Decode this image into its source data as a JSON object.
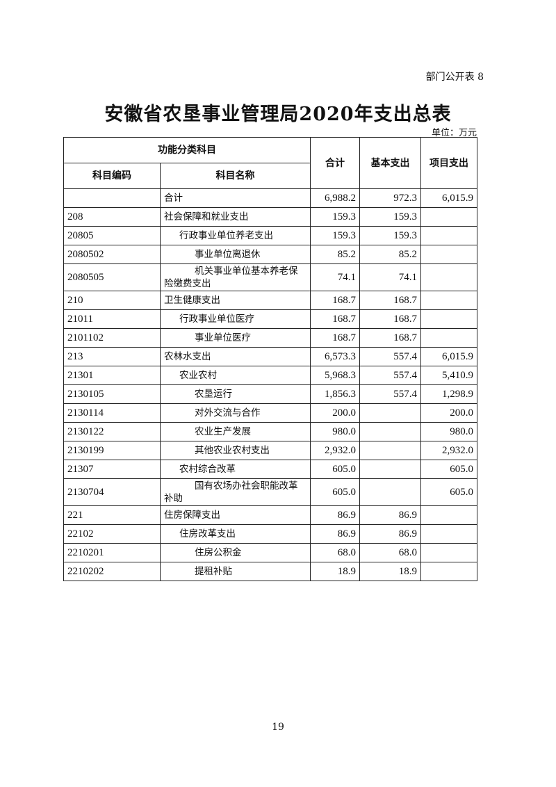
{
  "page_tag": "部门公开表 8",
  "title": "安徽省农垦事业管理局2020年支出总表",
  "unit": "单位：万元",
  "headers": {
    "group": "功能分类科目",
    "code": "科目编码",
    "name": "科目名称",
    "total": "合计",
    "basic": "基本支出",
    "project": "项目支出"
  },
  "rows": [
    {
      "code": "",
      "name": "合计",
      "level": 0,
      "total": "6,988.2",
      "basic": "972.3",
      "project": "6,015.9"
    },
    {
      "code": "208",
      "name": "社会保障和就业支出",
      "level": 0,
      "total": "159.3",
      "basic": "159.3",
      "project": ""
    },
    {
      "code": "20805",
      "name": "行政事业单位养老支出",
      "level": 1,
      "total": "159.3",
      "basic": "159.3",
      "project": ""
    },
    {
      "code": "2080502",
      "name": "事业单位离退休",
      "level": 2,
      "total": "85.2",
      "basic": "85.2",
      "project": ""
    },
    {
      "code": "2080505",
      "name": "机关事业单位基本养老保险缴费支出",
      "level": 2,
      "total": "74.1",
      "basic": "74.1",
      "project": "",
      "tall": true
    },
    {
      "code": "210",
      "name": "卫生健康支出",
      "level": 0,
      "total": "168.7",
      "basic": "168.7",
      "project": ""
    },
    {
      "code": "21011",
      "name": "行政事业单位医疗",
      "level": 1,
      "total": "168.7",
      "basic": "168.7",
      "project": ""
    },
    {
      "code": "2101102",
      "name": "事业单位医疗",
      "level": 2,
      "total": "168.7",
      "basic": "168.7",
      "project": ""
    },
    {
      "code": "213",
      "name": "农林水支出",
      "level": 0,
      "total": "6,573.3",
      "basic": "557.4",
      "project": "6,015.9"
    },
    {
      "code": "21301",
      "name": "农业农村",
      "level": 1,
      "total": "5,968.3",
      "basic": "557.4",
      "project": "5,410.9"
    },
    {
      "code": "2130105",
      "name": "农垦运行",
      "level": 2,
      "total": "1,856.3",
      "basic": "557.4",
      "project": "1,298.9"
    },
    {
      "code": "2130114",
      "name": "对外交流与合作",
      "level": 2,
      "total": "200.0",
      "basic": "",
      "project": "200.0"
    },
    {
      "code": "2130122",
      "name": "农业生产发展",
      "level": 2,
      "total": "980.0",
      "basic": "",
      "project": "980.0"
    },
    {
      "code": "2130199",
      "name": "其他农业农村支出",
      "level": 2,
      "total": "2,932.0",
      "basic": "",
      "project": "2,932.0"
    },
    {
      "code": "21307",
      "name": "农村综合改革",
      "level": 1,
      "total": "605.0",
      "basic": "",
      "project": "605.0"
    },
    {
      "code": "2130704",
      "name": "国有农场办社会职能改革补助",
      "level": 2,
      "total": "605.0",
      "basic": "",
      "project": "605.0",
      "tall": true
    },
    {
      "code": "221",
      "name": "住房保障支出",
      "level": 0,
      "total": "86.9",
      "basic": "86.9",
      "project": ""
    },
    {
      "code": "22102",
      "name": "住房改革支出",
      "level": 1,
      "total": "86.9",
      "basic": "86.9",
      "project": ""
    },
    {
      "code": "2210201",
      "name": "住房公积金",
      "level": 2,
      "total": "68.0",
      "basic": "68.0",
      "project": ""
    },
    {
      "code": "2210202",
      "name": "提租补贴",
      "level": 2,
      "total": "18.9",
      "basic": "18.9",
      "project": ""
    }
  ],
  "page_number": "19"
}
